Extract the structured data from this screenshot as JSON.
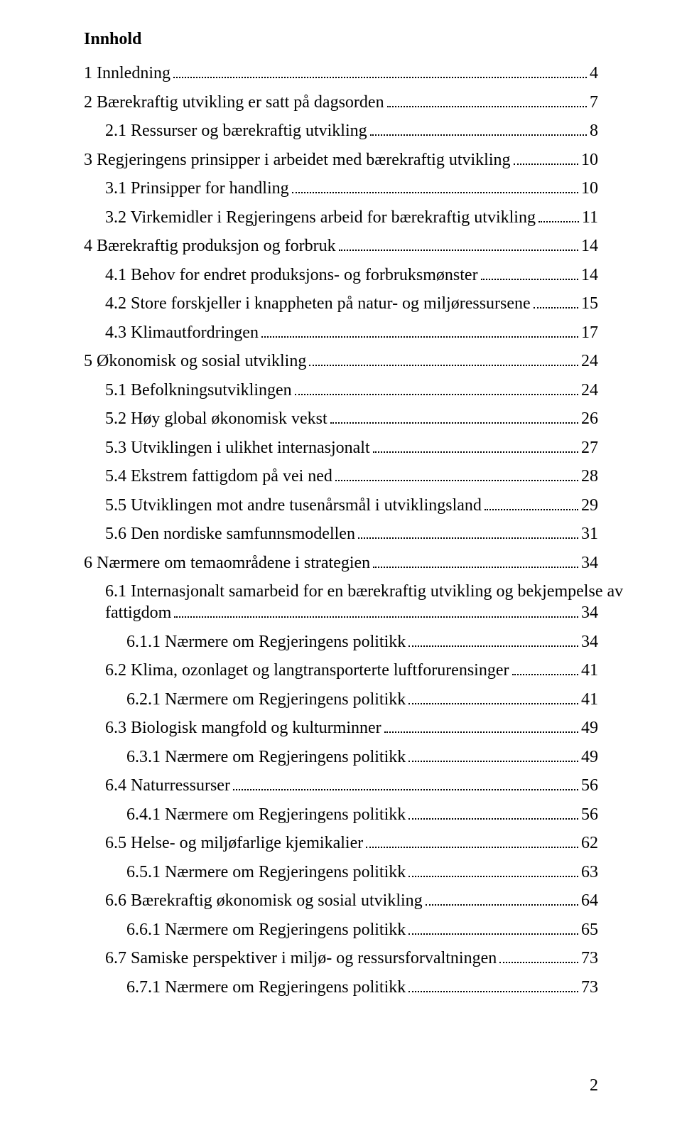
{
  "title": "Innhold",
  "page_number": "2",
  "toc": [
    {
      "indent": 0,
      "label": "1 Innledning",
      "page": "4"
    },
    {
      "indent": 0,
      "label": "2 Bærekraftig utvikling er satt på dagsorden",
      "page": "7"
    },
    {
      "indent": 1,
      "label": "2.1 Ressurser og bærekraftig utvikling",
      "page": "8"
    },
    {
      "indent": 0,
      "label": "3 Regjeringens prinsipper i arbeidet med bærekraftig utvikling",
      "page": "10"
    },
    {
      "indent": 1,
      "label": "3.1 Prinsipper for handling",
      "page": "10"
    },
    {
      "indent": 1,
      "label": "3.2 Virkemidler i Regjeringens arbeid for bærekraftig utvikling",
      "page": "11"
    },
    {
      "indent": 0,
      "label": "4 Bærekraftig produksjon og forbruk",
      "page": "14"
    },
    {
      "indent": 1,
      "label": "4.1 Behov for endret produksjons- og forbruksmønster",
      "page": "14"
    },
    {
      "indent": 1,
      "label": "4.2 Store forskjeller i knappheten på natur- og miljøressursene",
      "page": "15"
    },
    {
      "indent": 1,
      "label": "4.3 Klimautfordringen",
      "page": "17"
    },
    {
      "indent": 0,
      "label": "5 Økonomisk og sosial utvikling",
      "page": "24"
    },
    {
      "indent": 1,
      "label": "5.1 Befolkningsutviklingen",
      "page": "24"
    },
    {
      "indent": 1,
      "label": "5.2 Høy global økonomisk vekst",
      "page": "26"
    },
    {
      "indent": 1,
      "label": "5.3 Utviklingen i ulikhet internasjonalt",
      "page": "27"
    },
    {
      "indent": 1,
      "label": "5.4 Ekstrem fattigdom på vei ned",
      "page": "28"
    },
    {
      "indent": 1,
      "label": "5.5 Utviklingen mot andre tusenårsmål i utviklingsland",
      "page": "29"
    },
    {
      "indent": 1,
      "label": "5.6 Den nordiske samfunnsmodellen",
      "page": "31"
    },
    {
      "indent": 0,
      "label": "6 Nærmere om temaområdene i strategien",
      "page": "34"
    },
    {
      "indent": 1,
      "label": "6.1 Internasjonalt samarbeid for en bærekraftig utvikling og bekjempelse av",
      "wrap_label": "fattigdom",
      "page": "34"
    },
    {
      "indent": 2,
      "label": "6.1.1 Nærmere om Regjeringens politikk",
      "page": "34"
    },
    {
      "indent": 1,
      "label": "6.2 Klima, ozonlaget og langtransporterte luftforurensinger",
      "page": "41"
    },
    {
      "indent": 2,
      "label": "6.2.1 Nærmere om Regjeringens politikk",
      "page": "41"
    },
    {
      "indent": 1,
      "label": "6.3 Biologisk mangfold og kulturminner",
      "page": "49"
    },
    {
      "indent": 2,
      "label": "6.3.1 Nærmere om Regjeringens politikk",
      "page": "49"
    },
    {
      "indent": 1,
      "label": "6.4 Naturressurser",
      "page": "56"
    },
    {
      "indent": 2,
      "label": "6.4.1 Nærmere om Regjeringens politikk",
      "page": "56"
    },
    {
      "indent": 1,
      "label": "6.5 Helse- og miljøfarlige kjemikalier",
      "page": "62"
    },
    {
      "indent": 2,
      "label": "6.5.1 Nærmere om Regjeringens politikk",
      "page": "63"
    },
    {
      "indent": 1,
      "label": "6.6 Bærekraftig økonomisk og sosial utvikling",
      "page": "64"
    },
    {
      "indent": 2,
      "label": "6.6.1 Nærmere om Regjeringens politikk",
      "page": "65"
    },
    {
      "indent": 1,
      "label": "6.7 Samiske perspektiver i miljø- og ressursforvaltningen",
      "page": "73"
    },
    {
      "indent": 2,
      "label": "6.7.1 Nærmere om Regjeringens politikk",
      "page": "73"
    }
  ]
}
